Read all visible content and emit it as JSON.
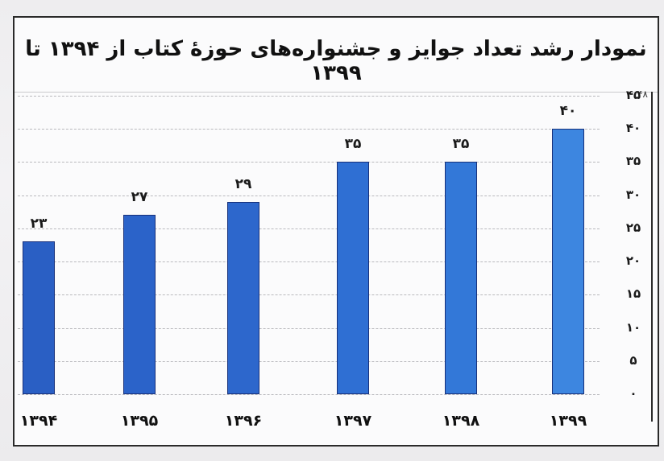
{
  "chart_data": {
    "type": "bar",
    "title": "نمودار رشد تعداد جوایز و جشنواره‌های حوزهٔ کتاب از ۱۳۹۴ تا ۱۳۹۹",
    "categories": [
      "۱۳۹۴",
      "۱۳۹۵",
      "۱۳۹۶",
      "۱۳۹۷",
      "۱۳۹۸",
      "۱۳۹۹"
    ],
    "categories_latin": [
      "1394",
      "1395",
      "1396",
      "1397",
      "1398",
      "1399"
    ],
    "values": [
      23,
      27,
      29,
      35,
      35,
      40
    ],
    "value_labels": [
      "۲۳",
      "۲۷",
      "۲۹",
      "۳۵",
      "۳۵",
      "۴۰"
    ],
    "xlabel": "",
    "ylabel": "",
    "ylim": [
      0,
      45
    ],
    "yticks": [
      0,
      5,
      10,
      15,
      20,
      25,
      30,
      35,
      40,
      45
    ],
    "ytick_labels": [
      "۰",
      "۵",
      "۱۰",
      "۱۵",
      "۲۰",
      "۲۵",
      "۳۰",
      "۳۵",
      "۴۰",
      "۴۵"
    ],
    "grid": true,
    "yaxis_position": "right",
    "legend": null
  },
  "colors": {
    "bars": [
      "#2a5fc4",
      "#2b63c9",
      "#2d67cc",
      "#2f6fd3",
      "#3378d8",
      "#3d86e0"
    ],
    "bar_border": "#17307a",
    "gridline": "#b9b9bd",
    "frame": "#2a2a2a"
  },
  "page_number": "۴۸"
}
